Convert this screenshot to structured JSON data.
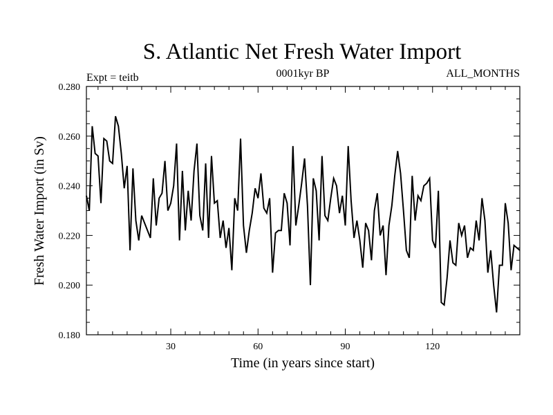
{
  "chart_data": {
    "type": "line",
    "title": "S. Atlantic Net Fresh Water Import",
    "subtitle_left": "Expt = teitb",
    "subtitle_center": "0001kyr BP",
    "subtitle_right": "ALL_MONTHS",
    "xlabel": "Time (in years since start)",
    "ylabel": "Fresh Water Import (in Sv)",
    "xlim": [
      1,
      150
    ],
    "ylim": [
      0.18,
      0.28
    ],
    "xticks": [
      30,
      60,
      90,
      120
    ],
    "yticks": [
      0.18,
      0.2,
      0.22,
      0.24,
      0.26,
      0.28
    ],
    "ytick_labels": [
      "0.180",
      "0.200",
      "0.220",
      "0.240",
      "0.260",
      "0.280"
    ],
    "grid": false,
    "color": "#000000",
    "series": [
      {
        "name": "Net Fresh Water Import",
        "x": [
          1,
          2,
          3,
          4,
          5,
          6,
          7,
          8,
          9,
          10,
          11,
          12,
          13,
          14,
          15,
          16,
          17,
          18,
          19,
          20,
          21,
          22,
          23,
          24,
          25,
          26,
          27,
          28,
          29,
          30,
          31,
          32,
          33,
          34,
          35,
          36,
          37,
          38,
          39,
          40,
          41,
          42,
          43,
          44,
          45,
          46,
          47,
          48,
          49,
          50,
          51,
          52,
          53,
          54,
          55,
          56,
          57,
          58,
          59,
          60,
          61,
          62,
          63,
          64,
          65,
          66,
          67,
          68,
          69,
          70,
          71,
          72,
          73,
          74,
          75,
          76,
          77,
          78,
          79,
          80,
          81,
          82,
          83,
          84,
          85,
          86,
          87,
          88,
          89,
          90,
          91,
          92,
          93,
          94,
          95,
          96,
          97,
          98,
          99,
          100,
          101,
          102,
          103,
          104,
          105,
          106,
          107,
          108,
          109,
          110,
          111,
          112,
          113,
          114,
          115,
          116,
          117,
          118,
          119,
          120,
          121,
          122,
          123,
          124,
          125,
          126,
          127,
          128,
          129,
          130,
          131,
          132,
          133,
          134,
          135,
          136,
          137,
          138,
          139,
          140,
          141,
          142,
          143,
          144,
          145,
          146,
          147,
          148,
          149,
          150
        ],
        "values": [
          0.236,
          0.23,
          0.264,
          0.253,
          0.252,
          0.233,
          0.259,
          0.258,
          0.25,
          0.249,
          0.268,
          0.264,
          0.253,
          0.239,
          0.248,
          0.214,
          0.247,
          0.226,
          0.218,
          0.228,
          0.225,
          0.222,
          0.219,
          0.243,
          0.224,
          0.235,
          0.237,
          0.25,
          0.23,
          0.233,
          0.24,
          0.257,
          0.218,
          0.246,
          0.222,
          0.238,
          0.226,
          0.246,
          0.257,
          0.228,
          0.222,
          0.249,
          0.219,
          0.252,
          0.233,
          0.234,
          0.219,
          0.226,
          0.215,
          0.223,
          0.206,
          0.235,
          0.23,
          0.259,
          0.224,
          0.213,
          0.222,
          0.229,
          0.239,
          0.235,
          0.245,
          0.231,
          0.229,
          0.235,
          0.205,
          0.221,
          0.222,
          0.222,
          0.237,
          0.233,
          0.216,
          0.256,
          0.224,
          0.232,
          0.241,
          0.251,
          0.232,
          0.2,
          0.243,
          0.238,
          0.218,
          0.252,
          0.228,
          0.226,
          0.235,
          0.243,
          0.24,
          0.229,
          0.236,
          0.224,
          0.256,
          0.234,
          0.219,
          0.226,
          0.218,
          0.207,
          0.225,
          0.222,
          0.21,
          0.23,
          0.237,
          0.22,
          0.224,
          0.204,
          0.224,
          0.232,
          0.244,
          0.254,
          0.245,
          0.23,
          0.214,
          0.211,
          0.244,
          0.226,
          0.236,
          0.234,
          0.24,
          0.241,
          0.243,
          0.218,
          0.215,
          0.238,
          0.193,
          0.192,
          0.203,
          0.218,
          0.209,
          0.208,
          0.225,
          0.22,
          0.224,
          0.211,
          0.215,
          0.214,
          0.226,
          0.218,
          0.235,
          0.226,
          0.205,
          0.214,
          0.2,
          0.189,
          0.208,
          0.208,
          0.233,
          0.225,
          0.206,
          0.216,
          0.215,
          0.214
        ]
      }
    ]
  }
}
